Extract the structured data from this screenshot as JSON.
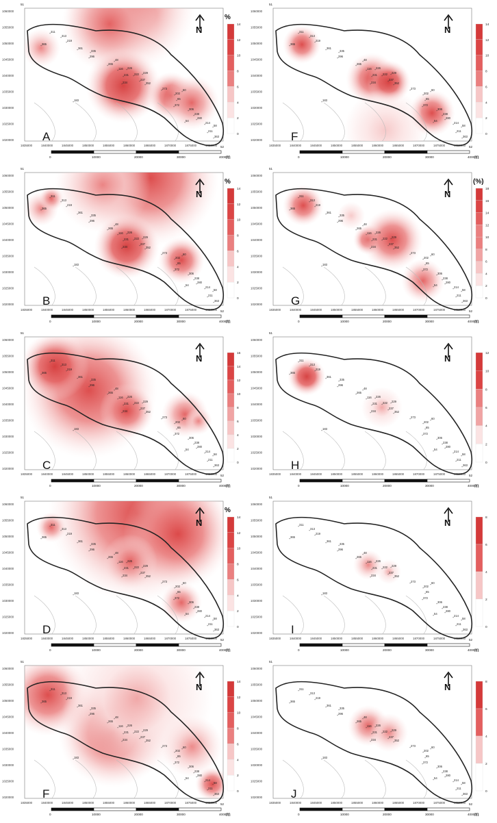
{
  "colors": {
    "scale": [
      "#ffffff",
      "#fbe3e3",
      "#f6c6c6",
      "#f0a4a4",
      "#ea8080",
      "#e35f5f",
      "#db4545",
      "#d43a3a"
    ],
    "outline": "#222222",
    "contour": "#bbbbbb"
  },
  "common": {
    "north_letter": "N",
    "east_ticks": [
      "1835000",
      "1840000",
      "1845000",
      "1850000",
      "1855000",
      "1860000",
      "1865000",
      "1870000",
      "1875000",
      "1880000"
    ],
    "north_ticks": [
      "1060000",
      "1055000",
      "1050000",
      "1045000",
      "1040000",
      "1035000",
      "1030000",
      "1025000",
      "1020000"
    ],
    "scale_labels": [
      "0",
      "10000",
      "20000",
      "30000",
      "40000"
    ],
    "scale_unit": "m",
    "corner_top": "51",
    "corner_bottom": "52",
    "stations": [
      "311",
      "313",
      "219",
      "365",
      "361",
      "335",
      "296",
      "265",
      "48",
      "116",
      "226",
      "229",
      "222",
      "237",
      "231",
      "234",
      "352",
      "273",
      "202",
      "60",
      "65",
      "372",
      "306",
      "238",
      "54",
      "280",
      "214",
      "58",
      "211",
      "363",
      "183"
    ]
  },
  "panels": [
    {
      "id": "A",
      "label": "A",
      "unit": "%",
      "legend": [
        "14",
        "12",
        "10",
        "8",
        "6",
        "4",
        "2",
        "0"
      ]
    },
    {
      "id": "F1",
      "label": "F",
      "unit": "",
      "legend": [
        "14",
        "12",
        "10",
        "8",
        "6",
        "4",
        "2",
        "0"
      ]
    },
    {
      "id": "B",
      "label": "B",
      "unit": "%",
      "legend": [
        "14",
        "12",
        "10",
        "8",
        "6",
        "4",
        "2",
        "0"
      ]
    },
    {
      "id": "G",
      "label": "G",
      "unit": "(%)",
      "legend": [
        "18",
        "16",
        "14",
        "12",
        "10",
        "8",
        "6",
        "4",
        "2",
        "0"
      ]
    },
    {
      "id": "C",
      "label": "C",
      "unit": "",
      "legend": [
        "16",
        "14",
        "12",
        "10",
        "8",
        "6",
        "4",
        "2",
        "0"
      ]
    },
    {
      "id": "H",
      "label": "H",
      "unit": "",
      "legend": [
        "12",
        "10",
        "8",
        "6",
        "4",
        "2",
        "0"
      ]
    },
    {
      "id": "D",
      "label": "D",
      "unit": "%",
      "legend": [
        "14",
        "12",
        "10",
        "8",
        "6",
        "4",
        "2",
        "0"
      ]
    },
    {
      "id": "I",
      "label": "I",
      "unit": "",
      "legend": [
        "8",
        "6",
        "4",
        "2",
        "0"
      ]
    },
    {
      "id": "F2",
      "label": "F",
      "unit": "",
      "legend": [
        "14",
        "12",
        "10",
        "8",
        "6",
        "4",
        "2",
        "0"
      ]
    },
    {
      "id": "J",
      "label": "J",
      "unit": "",
      "legend": [
        "8",
        "6",
        "4",
        "2",
        "0"
      ]
    }
  ]
}
